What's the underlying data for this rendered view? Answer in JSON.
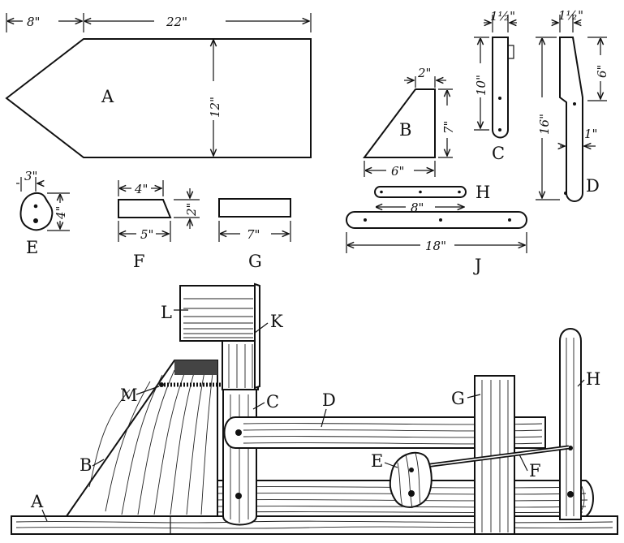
{
  "parts_top": {
    "A": {
      "label": "A",
      "dims": {
        "left": "8\"",
        "top": "22\"",
        "height": "12\""
      }
    },
    "B": {
      "label": "B",
      "dims": {
        "top": "2\"",
        "height": "7\"",
        "bottom": "6\""
      }
    },
    "C": {
      "label": "C",
      "dims": {
        "width": "1½\"",
        "height": "10\""
      }
    },
    "D": {
      "label": "D",
      "dims": {
        "width": "1½\"",
        "upper": "6\"",
        "total": "16\"",
        "thick": "1\""
      }
    },
    "E": {
      "label": "E",
      "dims": {
        "w": "3\"",
        "h": "4\""
      }
    },
    "F": {
      "label": "F",
      "dims": {
        "top": "4\"",
        "h": "2\"",
        "bottom": "5\""
      }
    },
    "G": {
      "label": "G",
      "dims": {
        "len": "7\""
      }
    },
    "H": {
      "label": "H",
      "dims": {
        "len": "8\""
      }
    },
    "J": {
      "label": "J",
      "dims": {
        "len": "18\""
      }
    }
  },
  "assembly_labels": {
    "A": "A",
    "B": "B",
    "C": "C",
    "D": "D",
    "E": "E",
    "F": "F",
    "G": "G",
    "H": "H",
    "K": "K",
    "L": "L",
    "M": "M"
  }
}
